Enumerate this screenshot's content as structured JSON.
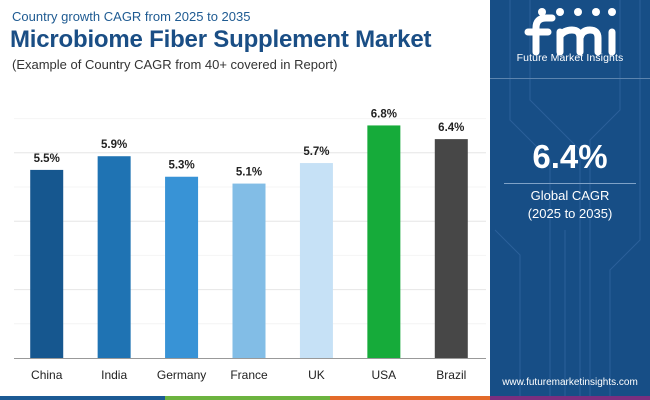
{
  "header": {
    "top_subtitle": "Country growth CAGR from 2025 to 2035",
    "title": "Microbiome Fiber Supplement Market",
    "bottom_subtitle": "(Example of Country CAGR from 40+ covered in Report)"
  },
  "sidebar": {
    "logo_text": "Future Market Insights",
    "value": "6.4%",
    "label": "Global CAGR",
    "range": "(2025 to 2035)",
    "website": "www.futuremarketinsights.com",
    "background": "#174e86"
  },
  "chart_data": {
    "type": "bar",
    "categories": [
      "China",
      "India",
      "Germany",
      "France",
      "UK",
      "USA",
      "Brazil"
    ],
    "values": [
      5.5,
      5.9,
      5.3,
      5.1,
      5.7,
      6.8,
      6.4
    ],
    "labels": [
      "5.5%",
      "5.9%",
      "5.3%",
      "5.1%",
      "5.7%",
      "6.8%",
      "6.4%"
    ],
    "colors": [
      "#16578f",
      "#1f73b3",
      "#3893d6",
      "#82bde6",
      "#c6e1f6",
      "#16ab3a",
      "#474747"
    ],
    "ylim": [
      0,
      7
    ],
    "grid": true,
    "title": "",
    "xlabel": "",
    "ylabel": ""
  },
  "bottom_bar_colors": [
    "#1c5a94",
    "#6cb33f",
    "#e36b2a",
    "#7a2f7f"
  ]
}
